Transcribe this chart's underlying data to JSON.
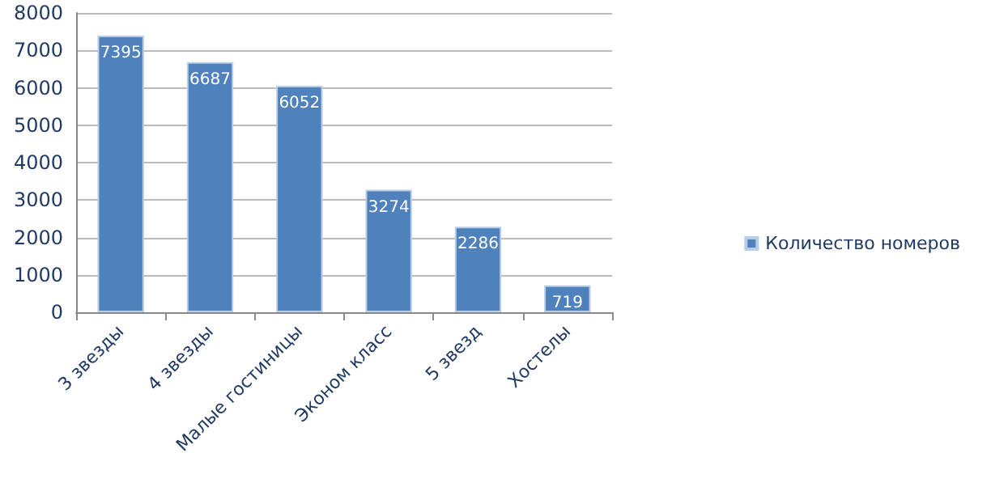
{
  "chart_data": {
    "type": "bar",
    "categories": [
      "3 звезды",
      "4 звезды",
      "Малые гостиницы",
      "Эконом класс",
      "5 звезд",
      "Хостелы"
    ],
    "series": [
      {
        "name": "Количество номеров",
        "color": "#4f81bd",
        "values": [
          7395,
          6687,
          6052,
          3274,
          2286,
          719
        ]
      }
    ],
    "data_labels": true,
    "ylim": [
      0,
      8000
    ],
    "yticks": [
      0,
      1000,
      2000,
      3000,
      4000,
      5000,
      6000,
      7000,
      8000
    ],
    "grid": "y",
    "legend": "right"
  }
}
